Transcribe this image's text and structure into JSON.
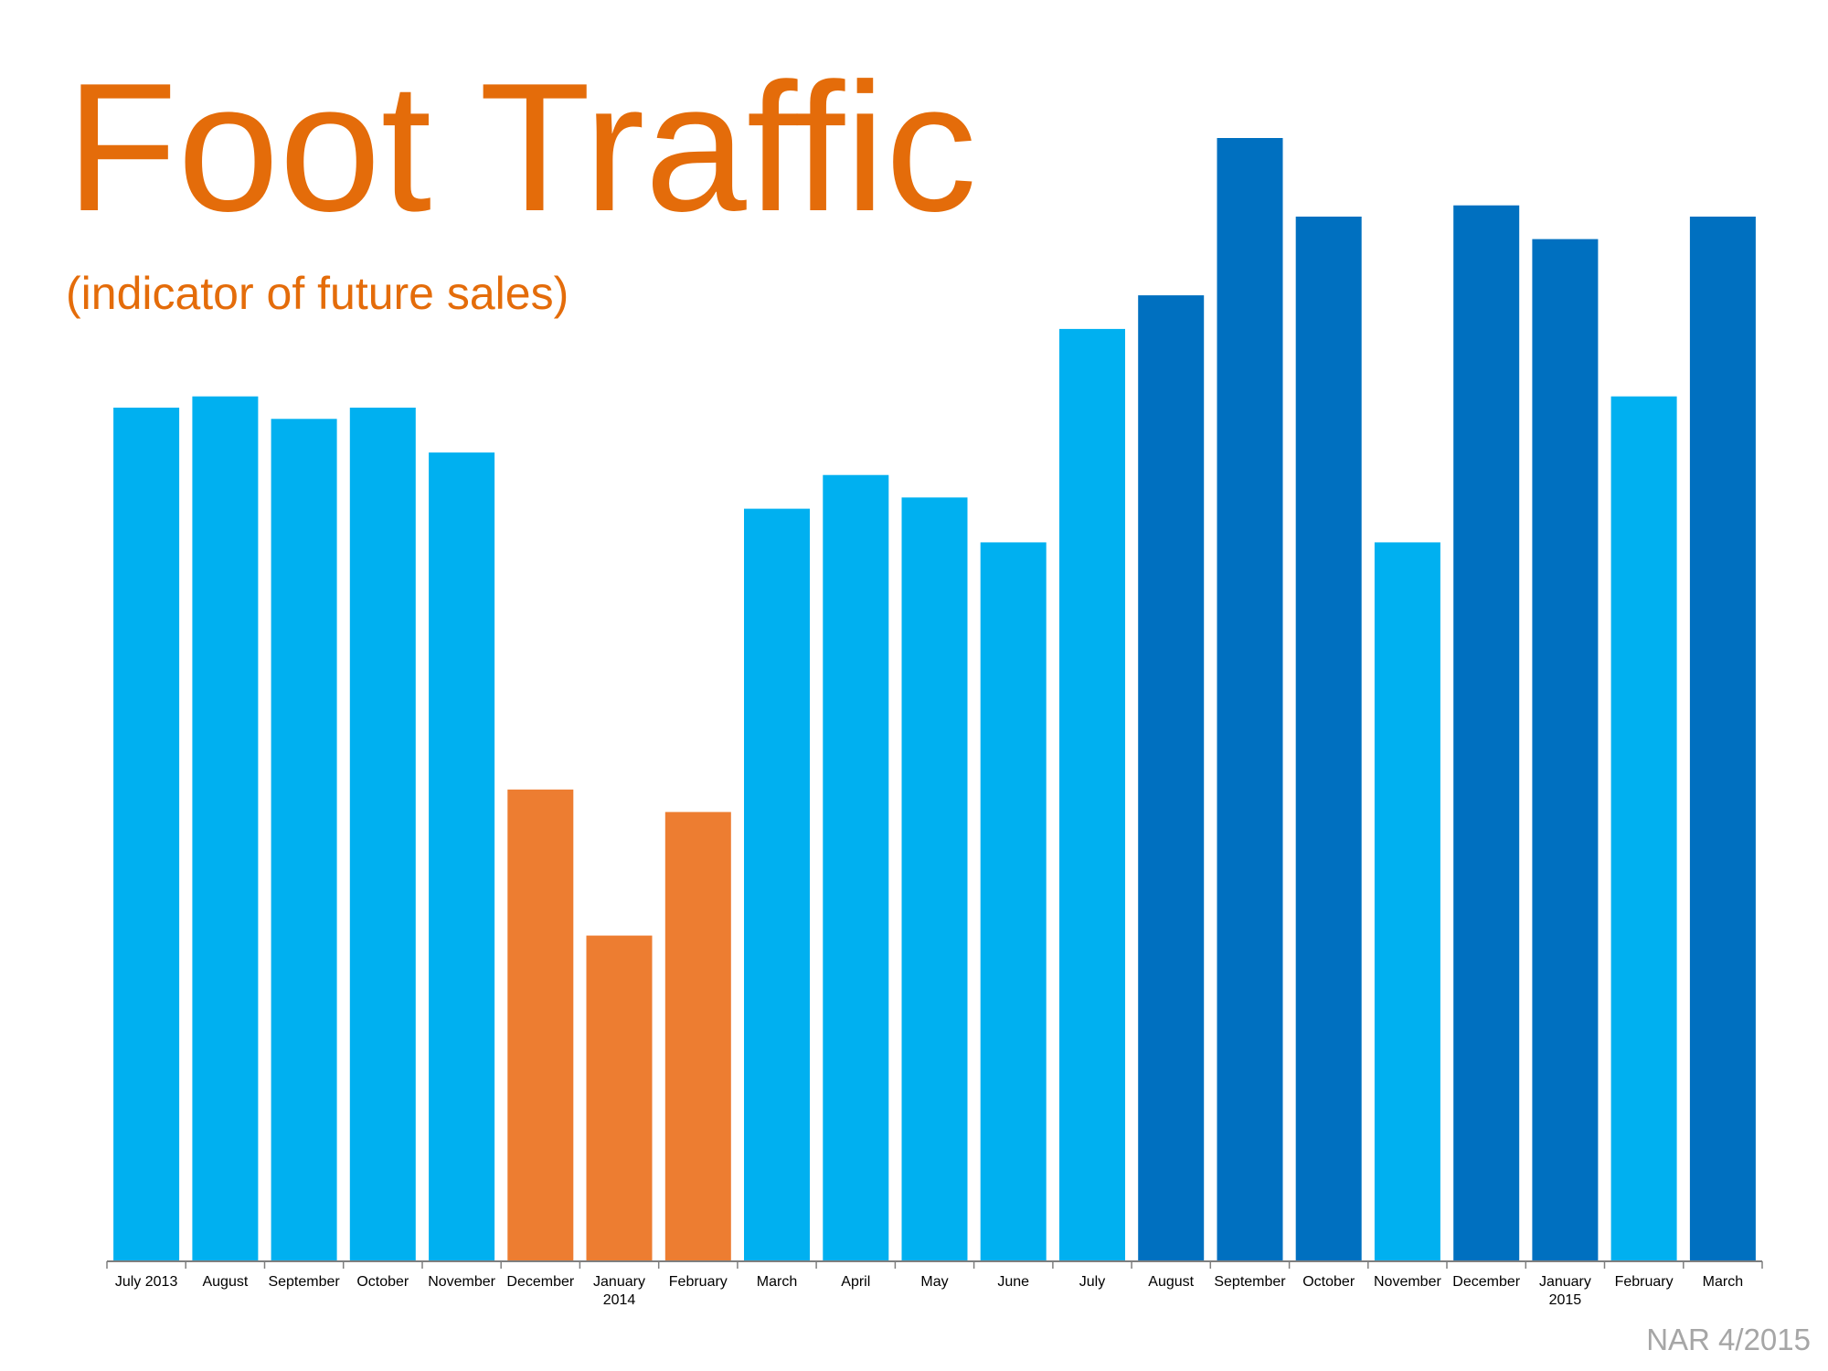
{
  "title": "Foot Traffic",
  "subtitle": "(indicator of future sales)",
  "source": "NAR 4/2015",
  "colors": {
    "title": "#e46c0a",
    "light_blue": "#00b0f0",
    "orange": "#ed7d31",
    "dark_blue": "#0070c0",
    "source_gray": "#a6a6a6",
    "axis": "#7f7f7f"
  },
  "chart_data": {
    "type": "bar",
    "title": "Foot Traffic",
    "subtitle": "(indicator of future sales)",
    "xlabel": "",
    "ylabel": "",
    "grid": false,
    "y_axis_visible": false,
    "ylim": [
      0,
      100
    ],
    "categories": [
      "July 2013",
      "August",
      "September",
      "October",
      "November",
      "December",
      "January 2014",
      "February",
      "March",
      "April",
      "May",
      "June",
      "July",
      "August",
      "September",
      "October",
      "November",
      "December",
      "January 2015",
      "February",
      "March"
    ],
    "tick_labels": [
      [
        "July 2013"
      ],
      [
        "August"
      ],
      [
        "September"
      ],
      [
        "October"
      ],
      [
        "November"
      ],
      [
        "December"
      ],
      [
        "January",
        "2014"
      ],
      [
        "February"
      ],
      [
        "March"
      ],
      [
        "April"
      ],
      [
        "May"
      ],
      [
        "June"
      ],
      [
        "July"
      ],
      [
        "August"
      ],
      [
        "September"
      ],
      [
        "October"
      ],
      [
        "November"
      ],
      [
        "December"
      ],
      [
        "January",
        "2015"
      ],
      [
        "February"
      ],
      [
        "March"
      ]
    ],
    "values": [
      76,
      77,
      75,
      76,
      72,
      42,
      29,
      40,
      67,
      70,
      68,
      64,
      83,
      86,
      100,
      93,
      64,
      94,
      91,
      77,
      93
    ],
    "bar_colors": [
      "#00b0f0",
      "#00b0f0",
      "#00b0f0",
      "#00b0f0",
      "#00b0f0",
      "#ed7d31",
      "#ed7d31",
      "#ed7d31",
      "#00b0f0",
      "#00b0f0",
      "#00b0f0",
      "#00b0f0",
      "#00b0f0",
      "#0070c0",
      "#0070c0",
      "#0070c0",
      "#00b0f0",
      "#0070c0",
      "#0070c0",
      "#00b0f0",
      "#0070c0"
    ]
  }
}
